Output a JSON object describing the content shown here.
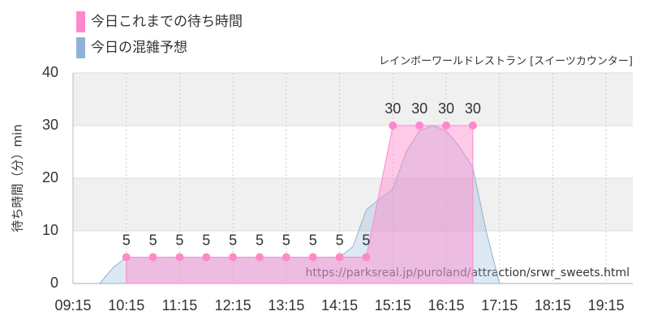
{
  "chart_data": {
    "type": "area",
    "subtitle": "レインボーワールドレストラン [スイーツカウンター]",
    "y_label": "待ち時間（分）min",
    "watermark": "https://parksreal.jp/puroland/attraction/srwr_sweets.html",
    "series": [
      {
        "name": "今日これまでの待ち時間",
        "color": "#ff88cc",
        "points": true,
        "data_labels": true,
        "x": [
          615,
          645,
          675,
          705,
          735,
          765,
          795,
          825,
          855,
          885,
          915,
          945,
          975,
          1005
        ],
        "values": [
          5,
          5,
          5,
          5,
          5,
          5,
          5,
          5,
          5,
          5,
          30,
          30,
          30,
          30
        ]
      },
      {
        "name": "今日の混雑予想",
        "color": "#8fb3d6",
        "points": false,
        "data_labels": false,
        "x": [
          555,
          585,
          600,
          615,
          855,
          870,
          885,
          900,
          915,
          930,
          945,
          960,
          975,
          990,
          1005,
          1020,
          1035,
          1185
        ],
        "values": [
          0,
          0,
          3,
          5,
          5,
          7,
          14,
          16,
          18,
          25,
          29,
          30,
          29,
          26,
          22,
          10,
          0,
          0
        ]
      }
    ],
    "xlim": [
      555,
      1185
    ],
    "xticks": [
      {
        "value": 555,
        "label": "09:15"
      },
      {
        "value": 615,
        "label": "10:15"
      },
      {
        "value": 675,
        "label": "11:15"
      },
      {
        "value": 735,
        "label": "12:15"
      },
      {
        "value": 795,
        "label": "13:15"
      },
      {
        "value": 855,
        "label": "14:15"
      },
      {
        "value": 915,
        "label": "15:15"
      },
      {
        "value": 975,
        "label": "16:15"
      },
      {
        "value": 1035,
        "label": "17:15"
      },
      {
        "value": 1095,
        "label": "18:15"
      },
      {
        "value": 1155,
        "label": "19:15"
      }
    ],
    "ylim": [
      0,
      40
    ],
    "yticks": [
      0,
      10,
      20,
      30,
      40
    ],
    "grid": true
  }
}
